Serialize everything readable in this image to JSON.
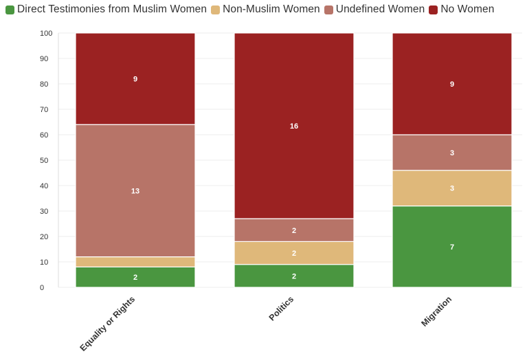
{
  "chart_data": {
    "type": "bar",
    "stacked": true,
    "percent": true,
    "categories": [
      "Equality or Rights",
      "Politics",
      "Migration"
    ],
    "series": [
      {
        "name": "Direct Testimonies from Muslim Women",
        "color": "#4a9640",
        "percents": [
          8,
          9,
          32
        ],
        "labels": [
          "2",
          "2",
          "7"
        ]
      },
      {
        "name": "Non-Muslim Women",
        "color": "#dfb87a",
        "percents": [
          4,
          9,
          14
        ],
        "labels": [
          "",
          "2",
          "3"
        ]
      },
      {
        "name": "Undefined Women",
        "color": "#b77468",
        "percents": [
          52,
          9,
          14
        ],
        "labels": [
          "13",
          "2",
          "3"
        ]
      },
      {
        "name": "No Women",
        "color": "#9b2222",
        "percents": [
          36,
          73,
          40
        ],
        "labels": [
          "9",
          "16",
          "9"
        ]
      }
    ],
    "yticks": [
      "0",
      "10",
      "20",
      "30",
      "40",
      "50",
      "60",
      "70",
      "80",
      "90",
      "100"
    ],
    "ylim": [
      0,
      100
    ],
    "xlabel": "",
    "ylabel": "",
    "grid": true,
    "legend_position": "top-left"
  }
}
